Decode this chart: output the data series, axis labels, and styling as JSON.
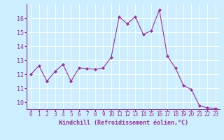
{
  "x": [
    0,
    1,
    2,
    3,
    4,
    5,
    6,
    7,
    8,
    9,
    10,
    11,
    12,
    13,
    14,
    15,
    16,
    17,
    18,
    19,
    20,
    21,
    22,
    23
  ],
  "y": [
    12.0,
    12.6,
    11.5,
    12.2,
    12.7,
    11.5,
    12.45,
    12.4,
    12.35,
    12.45,
    13.2,
    16.1,
    15.6,
    16.1,
    14.85,
    15.1,
    16.6,
    13.3,
    12.45,
    11.2,
    10.9,
    9.75,
    9.6,
    9.55
  ],
  "line_color": "#993399",
  "marker": "D",
  "marker_size": 2,
  "bg_color": "#cceeff",
  "grid_color": "#aaddcc",
  "xlabel": "Windchill (Refroidissement éolien,°C)",
  "xlabel_color": "#993399",
  "tick_color": "#993399",
  "label_color": "#993399",
  "ylim": [
    9.5,
    17.0
  ],
  "xlim": [
    -0.5,
    23.5
  ],
  "yticks": [
    10,
    11,
    12,
    13,
    14,
    15,
    16
  ],
  "xticks": [
    0,
    1,
    2,
    3,
    4,
    5,
    6,
    7,
    8,
    9,
    10,
    11,
    12,
    13,
    14,
    15,
    16,
    17,
    18,
    19,
    20,
    21,
    22,
    23
  ],
  "spine_color": "#993399",
  "linewidth": 0.8
}
